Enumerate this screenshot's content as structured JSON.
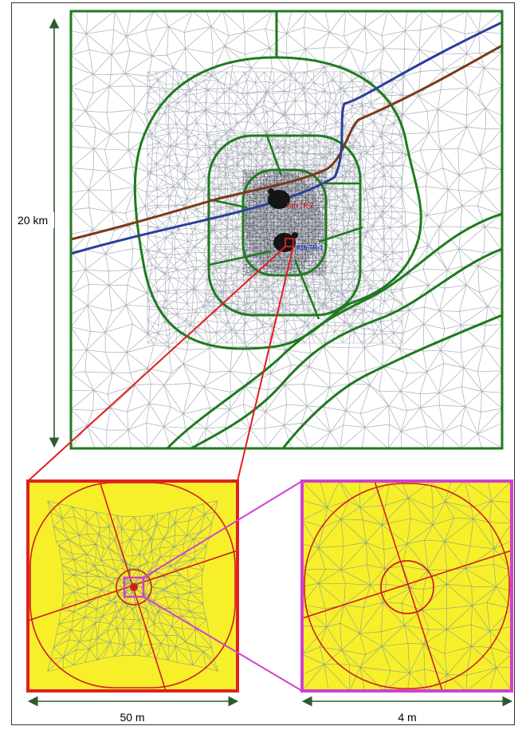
{
  "labels": {
    "main_scale": "20 km",
    "left_inset_scale": "50 m",
    "right_inset_scale": "4 m"
  },
  "wells": [
    {
      "label": "Kth TR-2"
    },
    {
      "label": "Kth TR-1"
    }
  ],
  "colors": {
    "zone_boundary": "#1f7a1f",
    "mesh": "#a8aeb8",
    "river_brown": "#7a3a1a",
    "river_blue": "#2a3f9a",
    "inset_fill": "#f7ef2a",
    "inset_mesh": "#86a08a",
    "inset_lines_red": "#cc2020",
    "zoom_red": "#e02020",
    "zoom_magenta": "#d040d0",
    "scale_arrow": "#2f5a2f"
  }
}
